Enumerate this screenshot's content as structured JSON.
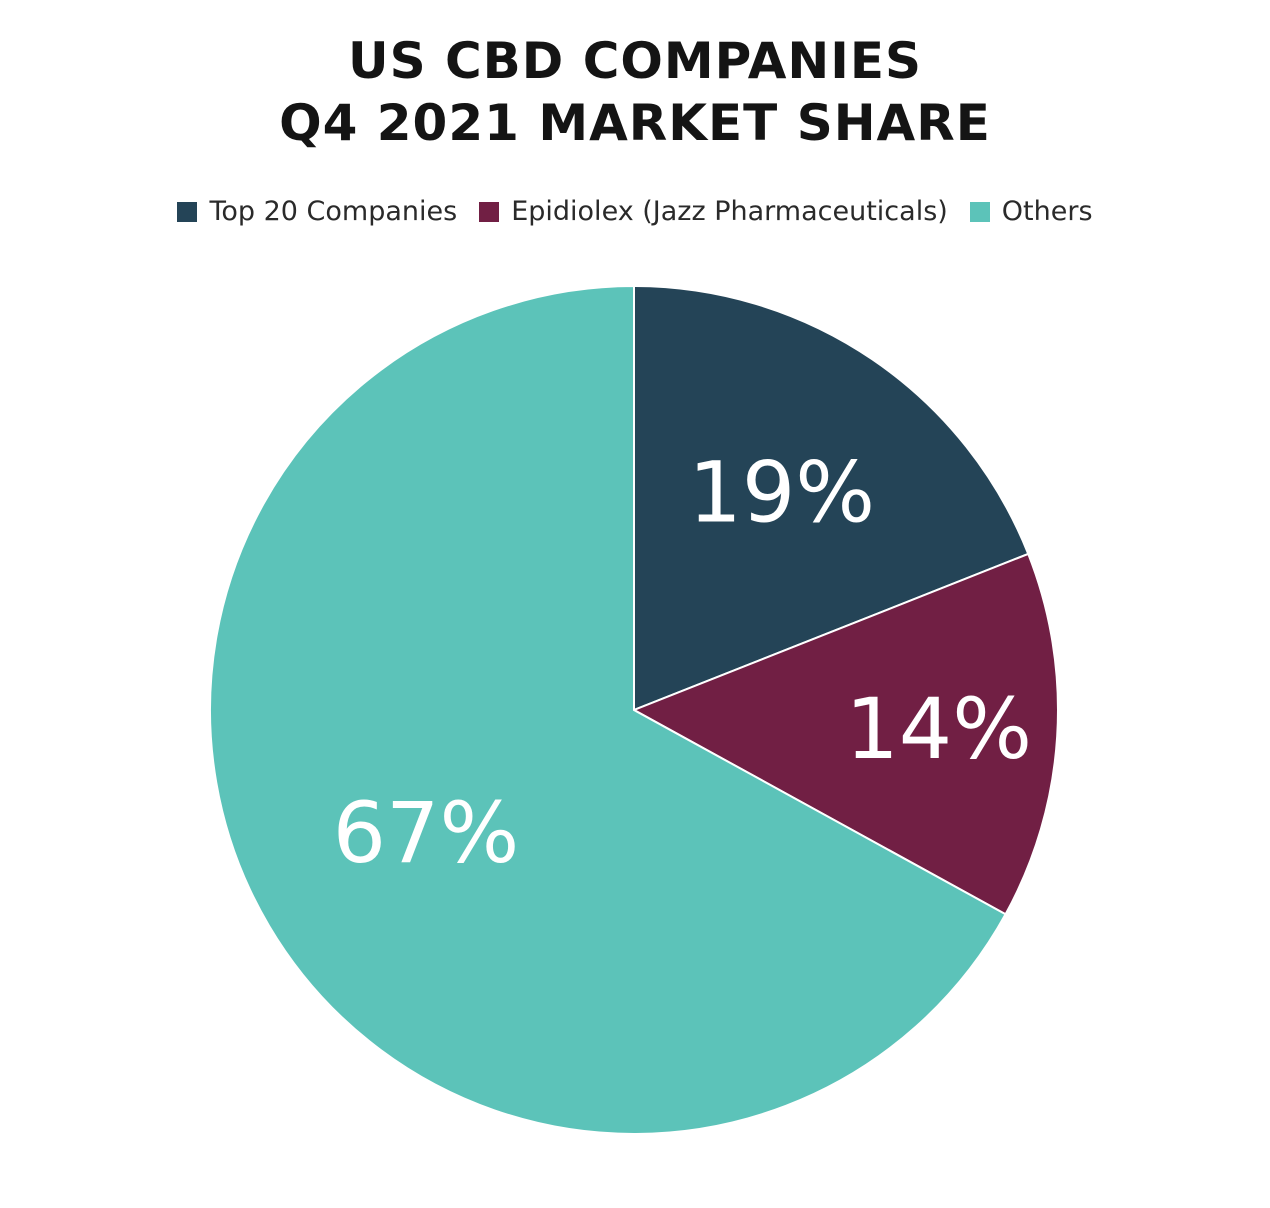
{
  "chart_data": {
    "type": "pie",
    "title_lines": [
      "US CBD COMPANIES",
      "Q4 2021 MARKET SHARE"
    ],
    "legend_position": "top",
    "slices": [
      {
        "name": "Top 20 Companies",
        "value": 19,
        "label": "19%",
        "color": "#244457"
      },
      {
        "name": "Epidiolex (Jazz Pharmaceuticals)",
        "value": 14,
        "label": "14%",
        "color": "#711f44"
      },
      {
        "name": "Others",
        "value": 67,
        "label": "67%",
        "color": "#5cc3b9"
      }
    ]
  }
}
